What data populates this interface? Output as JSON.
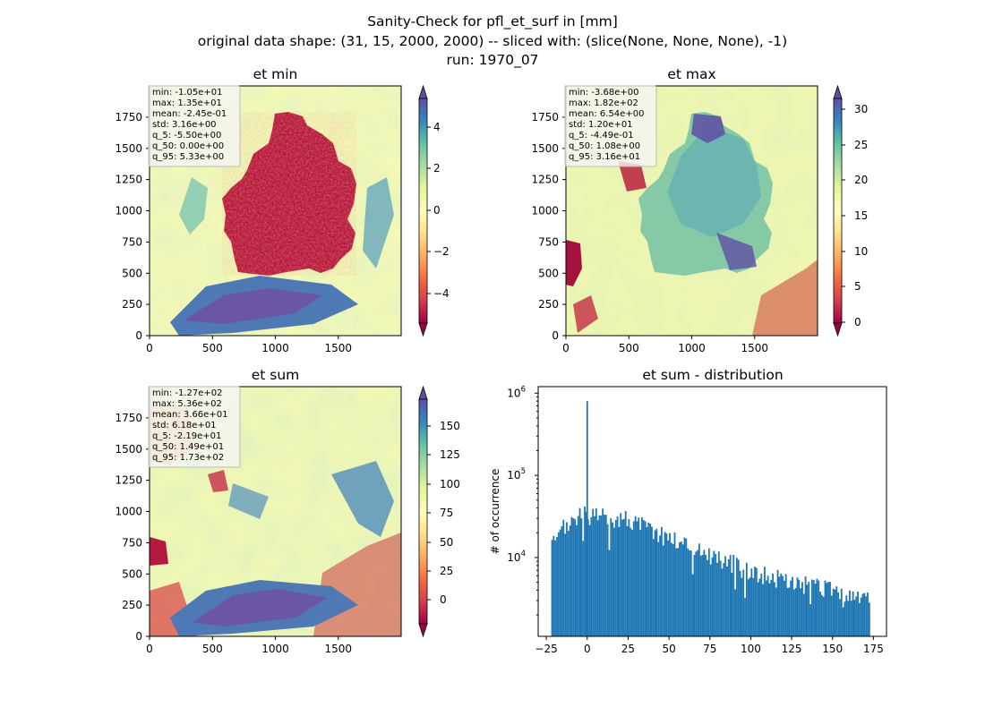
{
  "figure": {
    "title_lines": [
      "Sanity-Check for pfl_et_surf in [mm]",
      "original data shape: (31, 15, 2000, 2000) -- sliced with: (slice(None, None, None), -1)",
      "run: 1970_07"
    ]
  },
  "chart_data": [
    {
      "type": "heatmap",
      "title": "et min",
      "x_ticks": [
        "0",
        "500",
        "1000",
        "1500"
      ],
      "x_tick_values": [
        0,
        500,
        1000,
        1500
      ],
      "y_ticks": [
        "0",
        "250",
        "500",
        "750",
        "1000",
        "1250",
        "1500",
        "1750"
      ],
      "y_tick_values": [
        0,
        250,
        500,
        750,
        1000,
        1250,
        1500,
        1750
      ],
      "xlim": [
        0,
        2000
      ],
      "ylim": [
        0,
        2000
      ],
      "colormap": "Spectral",
      "colorbar": {
        "range": [
          -5.5,
          5.33
        ],
        "ticks": [
          "4",
          "2",
          "0",
          "−2",
          "−4"
        ],
        "tick_values": [
          4,
          2,
          0,
          -2,
          -4
        ],
        "extend": "both"
      },
      "stats": [
        "min: -1.05e+01",
        "max: 1.35e+01",
        "mean: -2.45e-01",
        "std: 3.16e+00",
        "q_5: -5.50e+00",
        "q_50: 0.00e+00",
        "q_95: 5.33e+00"
      ]
    },
    {
      "type": "heatmap",
      "title": "et max",
      "x_ticks": [
        "0",
        "500",
        "1000",
        "1500"
      ],
      "x_tick_values": [
        0,
        500,
        1000,
        1500
      ],
      "y_ticks": [
        "0",
        "250",
        "500",
        "750",
        "1000",
        "1250",
        "1500",
        "1750"
      ],
      "y_tick_values": [
        0,
        250,
        500,
        750,
        1000,
        1250,
        1500,
        1750
      ],
      "xlim": [
        0,
        2000
      ],
      "ylim": [
        0,
        2000
      ],
      "colormap": "Spectral",
      "colorbar": {
        "range": [
          -0.449,
          31.6
        ],
        "ticks": [
          "30",
          "25",
          "20",
          "15",
          "10",
          "5",
          "0"
        ],
        "tick_values": [
          30,
          25,
          20,
          15,
          10,
          5,
          0
        ],
        "extend": "both"
      },
      "stats": [
        "min: -3.68e+00",
        "max: 1.82e+02",
        "mean: 6.54e+00",
        "std: 1.20e+01",
        "q_5: -4.49e-01",
        "q_50: 1.08e+00",
        "q_95: 3.16e+01"
      ]
    },
    {
      "type": "heatmap",
      "title": "et sum",
      "x_ticks": [
        "0",
        "500",
        "1000",
        "1500"
      ],
      "x_tick_values": [
        0,
        500,
        1000,
        1500
      ],
      "y_ticks": [
        "0",
        "250",
        "500",
        "750",
        "1000",
        "1250",
        "1500",
        "1750"
      ],
      "y_tick_values": [
        0,
        250,
        500,
        750,
        1000,
        1250,
        1500,
        1750
      ],
      "xlim": [
        0,
        2000
      ],
      "ylim": [
        0,
        2000
      ],
      "colormap": "Spectral",
      "colorbar": {
        "range": [
          -21.9,
          173
        ],
        "ticks": [
          "150",
          "125",
          "100",
          "75",
          "50",
          "25",
          "0"
        ],
        "tick_values": [
          150,
          125,
          100,
          75,
          50,
          25,
          0
        ],
        "extend": "both"
      },
      "stats": [
        "min: -1.27e+02",
        "max: 5.36e+02",
        "mean: 3.66e+01",
        "std: 6.18e+01",
        "q_5: -2.19e+01",
        "q_50: 1.49e+01",
        "q_95: 1.73e+02"
      ]
    },
    {
      "type": "bar",
      "title": "et sum - distribution",
      "ylabel": "# of occurrence",
      "yscale": "log",
      "ylim": [
        1100,
        1200000
      ],
      "xlim": [
        -30,
        183
      ],
      "x_ticks": [
        "−25",
        "0",
        "25",
        "50",
        "75",
        "100",
        "125",
        "150",
        "175"
      ],
      "x_tick_values": [
        -25,
        0,
        25,
        50,
        75,
        100,
        125,
        150,
        175
      ],
      "y_ticks": [
        "10",
        "10",
        "10"
      ],
      "y_tick_exponents": [
        "4",
        "5",
        "6"
      ],
      "y_tick_values": [
        10000,
        100000,
        1000000
      ],
      "bar_color": "#1f77b4",
      "bin_range": [
        -22,
        173
      ],
      "spike": {
        "x": 0,
        "count": 800000
      },
      "envelope_x": [
        -22,
        -15,
        -10,
        -5,
        0,
        10,
        25,
        35,
        50,
        75,
        100,
        125,
        150,
        173
      ],
      "envelope_y": [
        13000,
        22000,
        28000,
        33000,
        33000,
        31000,
        30000,
        24000,
        18000,
        11000,
        7000,
        5000,
        4000,
        3000
      ]
    }
  ]
}
